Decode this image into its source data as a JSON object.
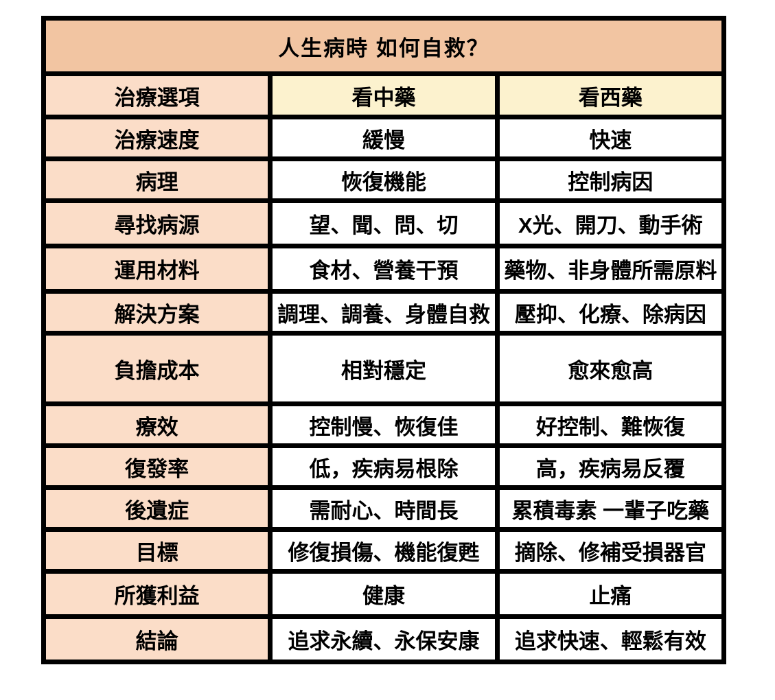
{
  "title": "人生病時 如何自救？",
  "columns": {
    "label": "治療選項",
    "tcm": "看中藥",
    "western": "看西藥"
  },
  "rows": [
    {
      "label": "治療速度",
      "tcm": "緩慢",
      "western": "快速"
    },
    {
      "label": "病理",
      "tcm": "恢復機能",
      "western": "控制病因"
    },
    {
      "label": "尋找病源",
      "tcm": "望、聞、問、切",
      "western": "X光、開刀、動手術"
    },
    {
      "label": "運用材料",
      "tcm": "食材、營養干預",
      "western": "藥物、非身體所需原料"
    },
    {
      "label": "解決方案",
      "tcm": "調理、調養、身體自救",
      "western": "壓抑、化療、除病因"
    },
    {
      "label": "負擔成本",
      "tcm": "相對穩定",
      "western": "愈來愈高"
    },
    {
      "label": "療效",
      "tcm": "控制慢、恢復佳",
      "western": "好控制、難恢復"
    },
    {
      "label": "復發率",
      "tcm": "低，疾病易根除",
      "western": "高，疾病易反覆"
    },
    {
      "label": "後遺症",
      "tcm": "需耐心、時間長",
      "western": "累積毒素 一輩子吃藥"
    },
    {
      "label": "目標",
      "tcm": "修復損傷、機能復甦",
      "western": "摘除、修補受損器官"
    },
    {
      "label": "所獲利益",
      "tcm": "健康",
      "western": "止痛"
    },
    {
      "label": "結論",
      "tcm": "追求永續、永保安康",
      "western": "追求快速、輕鬆有效"
    }
  ],
  "colors": {
    "title_bg": "#f2c5a2",
    "label_bg": "#fbddc8",
    "header_bg": "#fcf2ce",
    "cell_bg": "#ffffff",
    "border": "#000000",
    "text": "#000000"
  }
}
